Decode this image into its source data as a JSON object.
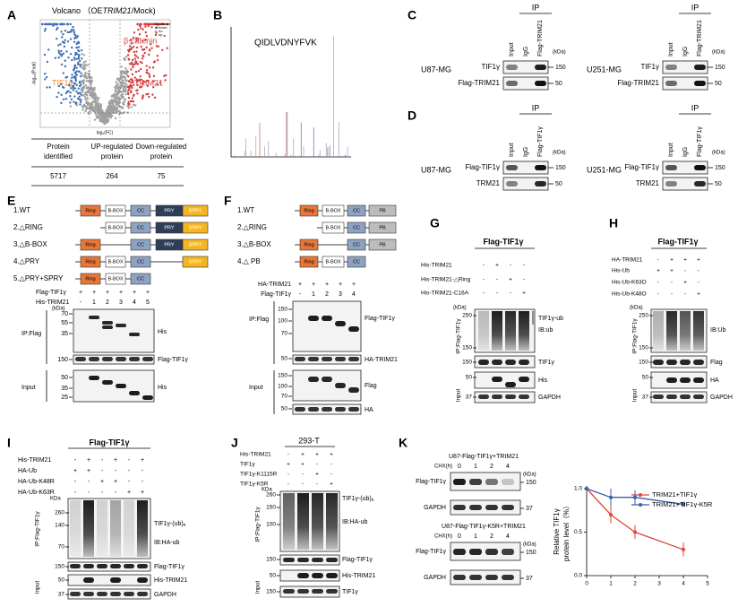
{
  "A": {
    "label": "A",
    "title": {
      "prefix": "Volcano （OE",
      "gene": "TRIM21",
      "suffix": "/Mock)"
    },
    "legend_title": "Significant",
    "legend": [
      "down",
      "no",
      "up"
    ],
    "x_axis": "log₂(FC)",
    "y_axis": "-log₁₀(P.val)",
    "genes": [
      "β-catenin",
      "TIF1γ",
      "TRIM21"
    ],
    "table": {
      "headers": [
        [
          "Protein",
          "identified"
        ],
        [
          "UP-regulated",
          "protein"
        ],
        [
          "Down-regulated",
          "protein"
        ]
      ],
      "values": [
        5717,
        264,
        75
      ]
    }
  },
  "B": {
    "label": "B",
    "peptide": "QIDLVDNYFVK"
  },
  "C": {
    "label": "C",
    "ip": "IP",
    "unit": "(kDa)",
    "blots": [
      {
        "cell_line": "U87-MG",
        "lanes": [
          "Input",
          "IgG",
          "Flag-TRIM21"
        ],
        "rows": [
          "TIF1γ",
          "Flag-TRIM21"
        ],
        "markers": [
          150,
          50
        ]
      },
      {
        "cell_line": "U251-MG",
        "lanes": [
          "Input",
          "IgG",
          "Flag-TRIM21"
        ],
        "rows": [
          "TIF1γ",
          "Flag-TRIM21"
        ],
        "markers": [
          150,
          50
        ]
      }
    ]
  },
  "D": {
    "label": "D",
    "ip": "IP",
    "unit": "(kDa)",
    "blots": [
      {
        "cell_line": "U87-MG",
        "lanes": [
          "Input",
          "IgG",
          "Flag-TIF1γ"
        ],
        "rows": [
          "Flag-TIF1γ",
          "TRM21"
        ],
        "markers": [
          150,
          50
        ]
      },
      {
        "cell_line": "U251-MG",
        "lanes": [
          "Input",
          "IgG",
          "Flag-TIF1γ"
        ],
        "rows": [
          "Flag-TIF1γ",
          "TRM21"
        ],
        "markers": [
          150,
          50
        ]
      }
    ]
  },
  "E": {
    "label": "E",
    "constructs": [
      "1.WT",
      "2.△RING",
      "3.△B-BOX",
      "4.△PRY",
      "5.△PRY+SPRY"
    ],
    "domains": [
      "Ring",
      "B-BOX",
      "CC",
      "PRY",
      "SPRY"
    ],
    "conditions": [
      {
        "name": "Flag-TIF1γ",
        "values": [
          "+",
          "+",
          "+",
          "+",
          "+",
          "+"
        ]
      },
      {
        "name": "His-TRIM21",
        "values": [
          "-",
          "1",
          "2",
          "3",
          "4",
          "5"
        ]
      }
    ],
    "unit": "(kDa)",
    "sections": [
      "IP:Flag",
      "Input"
    ],
    "markers": [
      70,
      55,
      35,
      150,
      50,
      35,
      25
    ],
    "bands": [
      "His",
      "Flag-TIF1γ",
      "His"
    ]
  },
  "F": {
    "label": "F",
    "constructs": [
      "1.WT",
      "2.△RING",
      "3.△B-BOX",
      "4.△ PB"
    ],
    "domains": [
      "Ring",
      "B-BOX",
      "CC",
      "PB"
    ],
    "conditions": [
      {
        "name": "HA-TRIM21",
        "values": [
          "+",
          "+",
          "+",
          "+",
          "+"
        ]
      },
      {
        "name": "Flag-TIF1γ",
        "values": [
          "-",
          "1",
          "2",
          "3",
          "4"
        ]
      }
    ],
    "sections": [
      "IP:Flag",
      "Input"
    ],
    "markers": [
      150,
      100,
      70,
      50,
      150,
      100,
      70,
      50
    ],
    "bands": [
      "Flag-TIF1γ",
      "HA-TRIM21",
      "Flag",
      "HA"
    ]
  },
  "G": {
    "label": "G",
    "title": "Flag-TIF1γ",
    "conditions": [
      {
        "name": "His-TRIM21",
        "values": [
          "-",
          "+",
          "-",
          "-"
        ]
      },
      {
        "name": "His-TRIM21-△Ring",
        "values": [
          "-",
          "-",
          "+",
          "-"
        ]
      },
      {
        "name": "His-TRIM21-C16A",
        "values": [
          "-",
          "-",
          "-",
          "+"
        ]
      }
    ],
    "unit": "(kDa)",
    "sections": [
      "IP:Flag-TIF1γ",
      "Input"
    ],
    "markers": [
      250,
      150,
      150,
      50,
      37
    ],
    "bands": [
      "TIF1γ-ub",
      "IB:ub",
      "TIF1γ",
      "His",
      "GAPDH"
    ]
  },
  "H": {
    "label": "H",
    "title": "Flag-TIF1γ",
    "conditions": [
      {
        "name": "HA-TRIM21",
        "values": [
          "-",
          "+",
          "+",
          "+"
        ]
      },
      {
        "name": "His-Ub",
        "values": [
          "+",
          "+",
          "-",
          "-"
        ]
      },
      {
        "name": "His-Ub-K63O",
        "values": [
          "-",
          "-",
          "+",
          "-"
        ]
      },
      {
        "name": "His-Ub-K48O",
        "values": [
          "-",
          "-",
          "-",
          "+"
        ]
      }
    ],
    "unit": "(kDa)",
    "sections": [
      "IP:Flag-TIF1γ",
      "Input"
    ],
    "markers": [
      250,
      150,
      150,
      50,
      37
    ],
    "bands": [
      "IB:Ub",
      "Flag",
      "HA",
      "GAPDH"
    ]
  },
  "I": {
    "label": "I",
    "title": "Flag-TIF1γ",
    "conditions": [
      {
        "name": "His-TRIM21",
        "values": [
          "-",
          "+",
          "-",
          "+",
          "-",
          "+"
        ]
      },
      {
        "name": "HA-Ub",
        "values": [
          "+",
          "+",
          "-",
          "-",
          "-",
          "-"
        ]
      },
      {
        "name": "HA-Ub-K48R",
        "values": [
          "-",
          "-",
          "+",
          "+",
          "-",
          "-"
        ]
      },
      {
        "name": "HA-Ub-K63R",
        "values": [
          "-",
          "-",
          "-",
          "-",
          "+",
          "+"
        ]
      }
    ],
    "unit": "KDa",
    "sections": [
      "IP:Flag-TIF1γ",
      "Input"
    ],
    "markers": [
      260,
      140,
      70,
      150,
      50,
      37
    ],
    "ub_label": {
      "text": "TIF1γ-(ub)",
      "subscript": "n"
    },
    "bands": [
      "IB:HA-ub",
      "Flag-TIF1γ",
      "His-TRIM21",
      "GAPDH"
    ]
  },
  "J": {
    "label": "J",
    "title": "293-T",
    "conditions": [
      {
        "name": "His-TRIM21",
        "values": [
          "-",
          "+",
          "+",
          "+"
        ]
      },
      {
        "name": "TIF1γ",
        "values": [
          "+",
          "+",
          "-",
          "-"
        ]
      },
      {
        "name": "TIF1γ-K1115R",
        "values": [
          "-",
          "-",
          "+",
          "-"
        ]
      },
      {
        "name": "TIF1γ-K5R",
        "values": [
          "-",
          "-",
          "-",
          "+"
        ]
      }
    ],
    "unit": "KDa",
    "sections": [
      "IP:Flag-TIF1γ",
      "Input"
    ],
    "markers": [
      260,
      150,
      100,
      150,
      50,
      150
    ],
    "ub_label": {
      "text": "TIF1γ-(ub)",
      "subscript": "n"
    },
    "bands": [
      "IB:HA-ub",
      "Flag-TIF1γ",
      "His-TRIM21",
      "TIF1γ"
    ]
  },
  "K": {
    "label": "K",
    "blots": [
      {
        "title": "U87-Flag-TIF1γ+TRIM21",
        "chx": "CHX(h)",
        "times": [
          0,
          1,
          2,
          4
        ],
        "unit": "(kDa)",
        "rows": [
          "Flag-TIF1γ",
          "GAPDH"
        ],
        "markers": [
          150,
          37
        ]
      },
      {
        "title": "U87-Flag-TIF1γ-K5R+TRIM21",
        "chx": "CHX(h)",
        "times": [
          0,
          1,
          2,
          4
        ],
        "unit": "(kDa)",
        "rows": [
          "Flag-TIF1γ",
          "GAPDH"
        ],
        "markers": [
          150,
          37
        ]
      }
    ],
    "chart": {
      "type": "line",
      "y_label": [
        "Relative TIF1γ",
        "protein level（%）"
      ],
      "x": [
        0,
        1,
        2,
        4
      ],
      "series": [
        {
          "name": "TRIM21+TIF1γ",
          "color": "#e0463a",
          "values": [
            1.0,
            0.7,
            0.5,
            0.3
          ],
          "errors": [
            0.02,
            0.1,
            0.08,
            0.08
          ]
        },
        {
          "name": "TRIM21+TIF1γ-K5R",
          "color": "#3a5fa8",
          "values": [
            1.0,
            0.9,
            0.9,
            0.82
          ],
          "errors": [
            0.02,
            0.1,
            0.08,
            0.03
          ]
        }
      ],
      "xlim": [
        0,
        5
      ],
      "ylim": [
        0,
        1
      ],
      "xticks": [
        0,
        1,
        2,
        3,
        4,
        5
      ],
      "yticks": [
        {
          "value": 0,
          "label": "0.0"
        },
        {
          "value": 0.5,
          "label": "0.5"
        },
        {
          "value": 1,
          "label": "1.0"
        }
      ]
    }
  }
}
